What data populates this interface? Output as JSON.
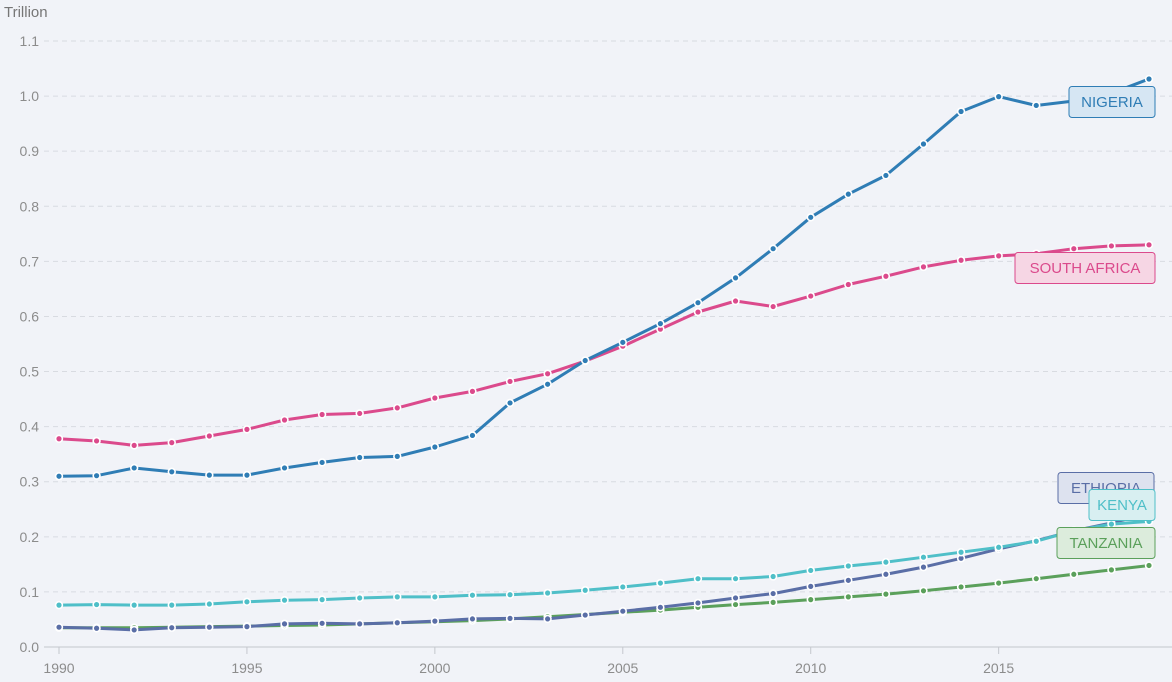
{
  "chart_data": {
    "type": "line",
    "unit_label": "Trillion",
    "xlim": [
      1990,
      2019
    ],
    "ylim": [
      0,
      1.1
    ],
    "x_ticks": [
      1990,
      1995,
      2000,
      2005,
      2010,
      2015
    ],
    "y_ticks": [
      "0.0",
      "0.1",
      "0.2",
      "0.3",
      "0.4",
      "0.5",
      "0.6",
      "0.7",
      "0.8",
      "0.9",
      "1.0",
      "1.1"
    ],
    "grid": true,
    "x": [
      1990,
      1991,
      1992,
      1993,
      1994,
      1995,
      1996,
      1997,
      1998,
      1999,
      2000,
      2001,
      2002,
      2003,
      2004,
      2005,
      2006,
      2007,
      2008,
      2009,
      2010,
      2011,
      2012,
      2013,
      2014,
      2015,
      2016,
      2017,
      2018,
      2019
    ],
    "series": [
      {
        "name": "TANZANIA",
        "color": "#5ba05b",
        "fill": "#dcecdc",
        "values": [
          0.035,
          0.035,
          0.035,
          0.036,
          0.037,
          0.038,
          0.039,
          0.04,
          0.042,
          0.044,
          0.046,
          0.048,
          0.051,
          0.055,
          0.059,
          0.063,
          0.067,
          0.072,
          0.077,
          0.081,
          0.086,
          0.091,
          0.096,
          0.102,
          0.109,
          0.116,
          0.124,
          0.132,
          0.14,
          0.148
        ]
      },
      {
        "name": "ETHIOPIA",
        "color": "#5a6ea6",
        "fill": "#dde2ef",
        "values": [
          0.036,
          0.034,
          0.031,
          0.035,
          0.036,
          0.037,
          0.042,
          0.043,
          0.042,
          0.044,
          0.047,
          0.051,
          0.052,
          0.051,
          0.058,
          0.065,
          0.072,
          0.08,
          0.089,
          0.097,
          0.11,
          0.121,
          0.132,
          0.145,
          0.161,
          0.178,
          0.193,
          0.211,
          0.225,
          0.243
        ]
      },
      {
        "name": "KENYA",
        "color": "#4fbfc8",
        "fill": "#d8eff1",
        "values": [
          0.076,
          0.077,
          0.076,
          0.076,
          0.078,
          0.082,
          0.085,
          0.086,
          0.089,
          0.091,
          0.091,
          0.094,
          0.095,
          0.098,
          0.103,
          0.109,
          0.116,
          0.124,
          0.124,
          0.128,
          0.139,
          0.147,
          0.154,
          0.163,
          0.172,
          0.181,
          0.192,
          0.211,
          0.223,
          0.228
        ]
      },
      {
        "name": "SOUTH AFRICA",
        "color": "#db4a8c",
        "fill": "#f6d6e4",
        "values": [
          0.378,
          0.374,
          0.366,
          0.371,
          0.383,
          0.395,
          0.412,
          0.422,
          0.424,
          0.434,
          0.452,
          0.464,
          0.482,
          0.496,
          0.519,
          0.546,
          0.577,
          0.608,
          0.628,
          0.618,
          0.637,
          0.658,
          0.673,
          0.69,
          0.702,
          0.71,
          0.714,
          0.723,
          0.728,
          0.73
        ]
      },
      {
        "name": "NIGERIA",
        "color": "#2f7db5",
        "fill": "#d6e6f3",
        "values": [
          0.31,
          0.311,
          0.325,
          0.318,
          0.312,
          0.312,
          0.325,
          0.335,
          0.344,
          0.346,
          0.363,
          0.384,
          0.443,
          0.477,
          0.52,
          0.553,
          0.587,
          0.625,
          0.67,
          0.723,
          0.78,
          0.822,
          0.856,
          0.913,
          0.972,
          0.999,
          0.983,
          0.991,
          1.005,
          1.031
        ]
      }
    ]
  }
}
